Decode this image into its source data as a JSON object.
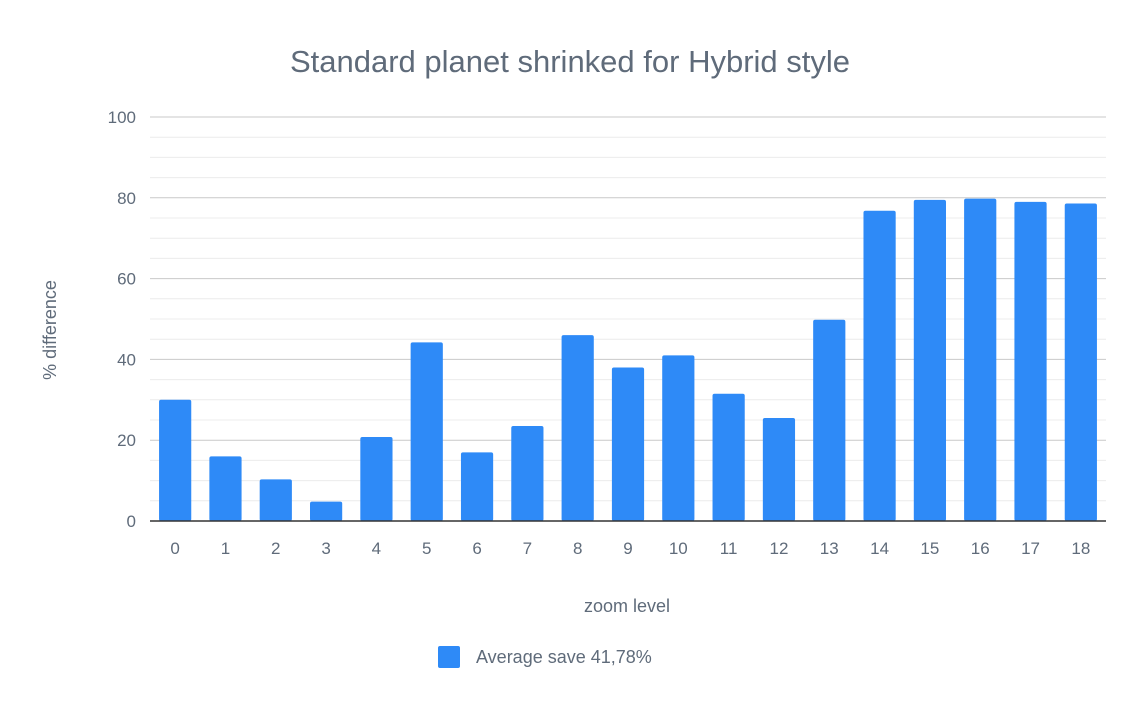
{
  "chart_data": {
    "type": "bar",
    "title": "Standard planet shrinked for Hybrid style",
    "xlabel": "zoom level",
    "ylabel": "% difference",
    "ylim": [
      0,
      100
    ],
    "yticks": [
      "0",
      "20",
      "40",
      "60",
      "80",
      "100"
    ],
    "grid": true,
    "legend_position": "bottom",
    "categories": [
      "0",
      "1",
      "2",
      "3",
      "4",
      "5",
      "6",
      "7",
      "8",
      "9",
      "10",
      "11",
      "12",
      "13",
      "14",
      "15",
      "16",
      "17",
      "18"
    ],
    "series": [
      {
        "name": "Average save 41,78%",
        "color": "#2e8af7",
        "values": [
          30,
          16,
          10.3,
          4.8,
          20.8,
          44.2,
          17,
          23.5,
          46,
          38,
          41,
          31.5,
          25.5,
          49.8,
          76.8,
          79.5,
          79.8,
          79,
          78.6
        ]
      }
    ]
  }
}
